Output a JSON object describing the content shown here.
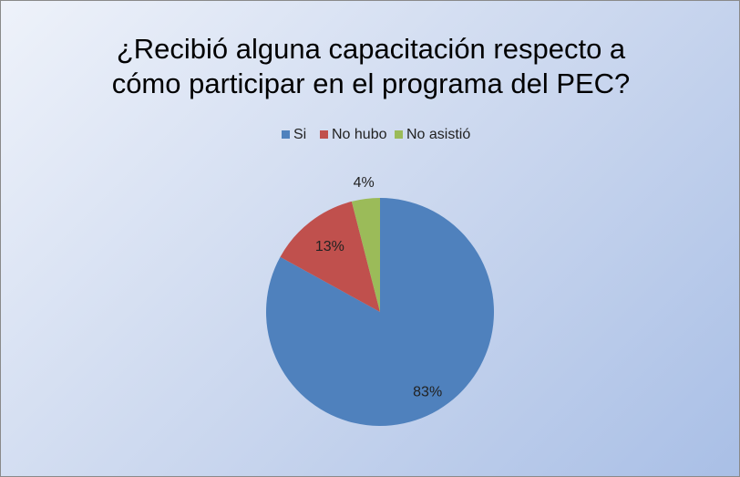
{
  "chart_data": {
    "type": "pie",
    "title": "¿Recibió alguna capacitación respecto a cómo participar en el programa del PEC?",
    "categories": [
      "Si",
      "No hubo",
      "No asistió"
    ],
    "values": [
      83,
      13,
      4
    ],
    "value_labels": [
      "83%",
      "13%",
      "4%"
    ],
    "colors": [
      "#4f81bd",
      "#c0504d",
      "#9bbb59"
    ],
    "legend": "top"
  }
}
